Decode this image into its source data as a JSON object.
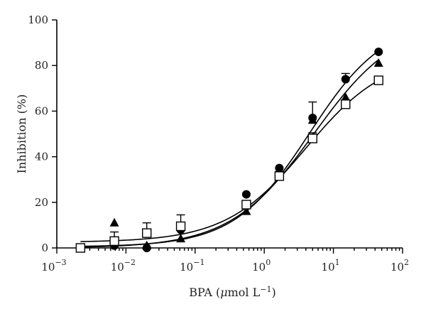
{
  "chart_data": {
    "type": "scatter",
    "title": "",
    "xlabel": {
      "prefix": "BPA (",
      "mu": "μ",
      "unit": "mol L",
      "superscript": "−1",
      "suffix": ")"
    },
    "ylabel": "Inhibition (%)",
    "xscale": "log",
    "xlim": [
      0.001,
      100
    ],
    "ylim": [
      0,
      100
    ],
    "xticks": [
      {
        "value": 0.001,
        "base": "10",
        "exp": "−3"
      },
      {
        "value": 0.01,
        "base": "10",
        "exp": "−2"
      },
      {
        "value": 0.1,
        "base": "10",
        "exp": "−1"
      },
      {
        "value": 1,
        "base": "10",
        "exp": "0"
      },
      {
        "value": 10,
        "base": "10",
        "exp": "1"
      },
      {
        "value": 100,
        "base": "10",
        "exp": "2"
      }
    ],
    "yticks": [
      {
        "value": 0,
        "label": "0"
      },
      {
        "value": 20,
        "label": "20"
      },
      {
        "value": 40,
        "label": "40"
      },
      {
        "value": 60,
        "label": "60"
      },
      {
        "value": 80,
        "label": "80"
      },
      {
        "value": 100,
        "label": "100"
      }
    ],
    "grid": false,
    "legend": "none",
    "series": [
      {
        "marker": "circle-filled",
        "x": [
          0.0022,
          0.0068,
          0.02,
          0.062,
          0.55,
          1.65,
          5.0,
          15.0,
          45.0
        ],
        "y": [
          0,
          1,
          0,
          8,
          23.5,
          35,
          57,
          74,
          86
        ],
        "err": [
          0,
          0,
          0,
          0,
          0,
          0,
          7,
          2.5,
          0
        ],
        "fit": {
          "bottom": 0.5,
          "top": 100,
          "ec50": 4.5,
          "hill": 0.8
        }
      },
      {
        "marker": "triangle-filled",
        "x": [
          0.0022,
          0.0068,
          0.02,
          0.062,
          0.55,
          1.65,
          5.0,
          15.0,
          45.0
        ],
        "y": [
          0,
          11,
          1,
          4,
          16,
          32,
          56,
          66,
          81
        ],
        "err": [
          0,
          0,
          0,
          0,
          0,
          0,
          0,
          0,
          0
        ],
        "fit": {
          "bottom": 0,
          "top": 100,
          "ec50": 5.2,
          "hill": 0.72
        }
      },
      {
        "marker": "square-open",
        "x": [
          0.0022,
          0.0068,
          0.02,
          0.062,
          0.55,
          1.65,
          5.0,
          15.0,
          45.0
        ],
        "y": [
          0,
          3,
          6.5,
          9.5,
          19,
          31.5,
          48,
          63,
          73.5
        ],
        "err": [
          0,
          4,
          4.5,
          5,
          0,
          2,
          2.5,
          0,
          0
        ],
        "fit": {
          "bottom": 2.5,
          "top": 85,
          "ec50": 4.0,
          "hill": 0.75
        }
      }
    ]
  }
}
